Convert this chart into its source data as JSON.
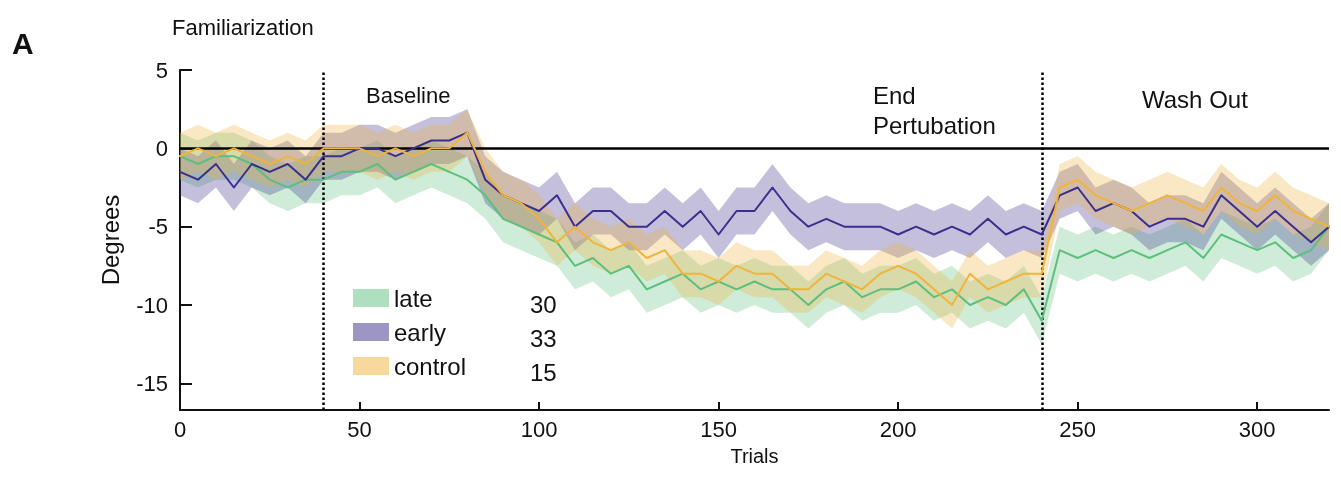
{
  "chart_data": {
    "type": "line",
    "xlabel": "Trials",
    "ylabel": "Degrees",
    "annotations": [
      "A",
      "Familiarization",
      "Baseline",
      "End Pertubation",
      "Wash Out",
      "30",
      "33",
      "15"
    ],
    "x": [
      0,
      5,
      10,
      15,
      20,
      25,
      30,
      35,
      40,
      45,
      50,
      55,
      60,
      65,
      70,
      75,
      80,
      85,
      90,
      95,
      100,
      105,
      110,
      115,
      120,
      125,
      130,
      135,
      140,
      145,
      150,
      155,
      160,
      165,
      170,
      175,
      180,
      185,
      190,
      195,
      200,
      205,
      210,
      215,
      220,
      225,
      230,
      235,
      240,
      245,
      250,
      255,
      260,
      265,
      270,
      275,
      280,
      285,
      290,
      295,
      300,
      305,
      310,
      315,
      320
    ],
    "series": [
      {
        "name": "late",
        "color": "#5dbf7e",
        "values": [
          -0.5,
          -1,
          -0.5,
          -0.5,
          -1,
          -2,
          -2.5,
          -2,
          -2,
          -1.5,
          -1.5,
          -1,
          -2,
          -1.5,
          -1,
          -1.5,
          -2,
          -3,
          -4.5,
          -5,
          -5.5,
          -6,
          -7.5,
          -7,
          -8,
          -7.5,
          -9,
          -8.5,
          -8,
          -9,
          -8.5,
          -9,
          -8.5,
          -9,
          -9,
          -10,
          -9,
          -8.5,
          -9.5,
          -9,
          -9,
          -8.5,
          -9.5,
          -9,
          -10,
          -9.5,
          -10,
          -9,
          -11,
          -6.5,
          -7,
          -6.5,
          -7,
          -6.5,
          -7,
          -6.5,
          -6,
          -7,
          -5.5,
          -6,
          -6.5,
          -6,
          -7,
          -6.5,
          -5
        ],
        "lower": [
          -2,
          -2.5,
          -2,
          -2,
          -2.5,
          -3.5,
          -4,
          -3.5,
          -3.5,
          -3,
          -3,
          -2.5,
          -3.5,
          -3,
          -2.5,
          -3,
          -3.5,
          -4.5,
          -6,
          -6.5,
          -7,
          -7.5,
          -9,
          -8.5,
          -9.5,
          -9,
          -10.5,
          -10,
          -9.5,
          -10.5,
          -10,
          -10.5,
          -10,
          -10.5,
          -10.5,
          -11.5,
          -10.5,
          -10,
          -11,
          -10.5,
          -10.5,
          -10,
          -11,
          -10.5,
          -11.5,
          -11,
          -11.5,
          -10.5,
          -12.5,
          -8,
          -8.5,
          -8,
          -8.5,
          -8,
          -8.5,
          -8,
          -7.5,
          -8.5,
          -7,
          -7.5,
          -8,
          -7.5,
          -8.5,
          -8,
          -6.5
        ],
        "upper": [
          1,
          0.5,
          1,
          1,
          0.5,
          -0.5,
          -1,
          -0.5,
          -0.5,
          0,
          0,
          0.5,
          -0.5,
          0,
          0.5,
          0,
          -0.5,
          -1.5,
          -3,
          -3.5,
          -4,
          -4.5,
          -6,
          -5.5,
          -6.5,
          -6,
          -7.5,
          -7,
          -6.5,
          -7.5,
          -7,
          -7.5,
          -7,
          -7.5,
          -7.5,
          -8.5,
          -7.5,
          -7,
          -8,
          -7.5,
          -7.5,
          -7,
          -8,
          -7.5,
          -8.5,
          -8,
          -8.5,
          -7.5,
          -9.5,
          -5,
          -5.5,
          -5,
          -5.5,
          -5,
          -5.5,
          -5,
          -4.5,
          -5.5,
          -4,
          -4.5,
          -5,
          -4.5,
          -5.5,
          -5,
          -3.5
        ]
      },
      {
        "name": "early",
        "color": "#3b2e8c",
        "values": [
          -1.5,
          -2,
          -1,
          -2.5,
          -1,
          -1.5,
          -1,
          -2,
          -0.5,
          -0.5,
          0,
          0,
          -0.5,
          0,
          0.5,
          0.5,
          1,
          -2,
          -3,
          -3.5,
          -4,
          -3,
          -5,
          -4,
          -4,
          -5,
          -5,
          -4,
          -5,
          -4,
          -5.5,
          -4,
          -4,
          -2.5,
          -4,
          -5,
          -4.5,
          -5,
          -5,
          -5,
          -5.5,
          -5,
          -5.5,
          -5,
          -5.5,
          -4.5,
          -5.5,
          -5,
          -5.5,
          -3,
          -2.5,
          -4,
          -3.5,
          -4,
          -5,
          -4.5,
          -4.5,
          -5,
          -3,
          -4,
          -5,
          -4,
          -5,
          -6,
          -5
        ],
        "lower": [
          -3,
          -3.5,
          -2.5,
          -4,
          -2.5,
          -3,
          -2.5,
          -3.5,
          -2,
          -2,
          -1.5,
          -1.5,
          -2,
          -1.5,
          -1,
          -1,
          -0.5,
          -3.5,
          -4.5,
          -5,
          -5.5,
          -4.5,
          -6.5,
          -5.5,
          -5.5,
          -6.5,
          -6.5,
          -5.5,
          -6.5,
          -5.5,
          -7,
          -5.5,
          -5.5,
          -4,
          -5.5,
          -6.5,
          -6,
          -6.5,
          -6.5,
          -6.5,
          -7,
          -6.5,
          -7,
          -6.5,
          -7,
          -6,
          -7,
          -6.5,
          -7,
          -4.5,
          -4,
          -5.5,
          -5,
          -5.5,
          -6.5,
          -6,
          -6,
          -6.5,
          -4.5,
          -5.5,
          -6.5,
          -5.5,
          -6.5,
          -7.5,
          -6.5
        ],
        "upper": [
          0,
          -0.5,
          0.5,
          -1,
          0.5,
          0,
          0.5,
          -0.5,
          1,
          1,
          1.5,
          1.5,
          1,
          1.5,
          2,
          2,
          2.5,
          -0.5,
          -1.5,
          -2,
          -2.5,
          -1.5,
          -3.5,
          -2.5,
          -2.5,
          -3.5,
          -3.5,
          -2.5,
          -3.5,
          -2.5,
          -4,
          -2.5,
          -2.5,
          -1,
          -2.5,
          -3.5,
          -3,
          -3.5,
          -3.5,
          -3.5,
          -4,
          -3.5,
          -4,
          -3.5,
          -4,
          -3,
          -4,
          -3.5,
          -4,
          -1.5,
          -1,
          -2.5,
          -2,
          -2.5,
          -3.5,
          -3,
          -3,
          -3.5,
          -1.5,
          -2.5,
          -3.5,
          -2.5,
          -3.5,
          -4.5,
          -3.5
        ]
      },
      {
        "name": "control",
        "color": "#f0b43c",
        "values": [
          -0.5,
          0,
          -0.5,
          0,
          -0.5,
          -1,
          -0.5,
          -1,
          0,
          0,
          0,
          -0.5,
          0,
          -0.5,
          0,
          0,
          1,
          -1.5,
          -3,
          -3.5,
          -4.5,
          -6,
          -5,
          -6,
          -6.5,
          -6,
          -7,
          -6.5,
          -8,
          -8,
          -8.5,
          -7.5,
          -8,
          -8,
          -9,
          -9,
          -8,
          -8.5,
          -9,
          -8,
          -7.5,
          -8,
          -9,
          -10,
          -8,
          -9,
          -8.5,
          -8,
          -8,
          -2.5,
          -2,
          -3,
          -3.5,
          -4,
          -3.5,
          -3,
          -3.5,
          -4,
          -2.5,
          -3.5,
          -4,
          -3,
          -4,
          -4.5,
          -5
        ],
        "lower": [
          -2,
          -1.5,
          -2,
          -1.5,
          -2,
          -2.5,
          -2,
          -2.5,
          -1.5,
          -1.5,
          -1.5,
          -2,
          -1.5,
          -2,
          -1.5,
          -1.5,
          -0.5,
          -3,
          -4.5,
          -5,
          -6,
          -7.5,
          -6.5,
          -7.5,
          -8,
          -7.5,
          -8.5,
          -8,
          -9.5,
          -9.5,
          -10,
          -9,
          -9.5,
          -9.5,
          -10.5,
          -10.5,
          -9.5,
          -10,
          -10.5,
          -9.5,
          -9,
          -9.5,
          -10.5,
          -11.5,
          -9.5,
          -10.5,
          -10,
          -9.5,
          -9.5,
          -4,
          -3.5,
          -4.5,
          -5,
          -5.5,
          -5,
          -4.5,
          -5,
          -5.5,
          -4,
          -5,
          -5.5,
          -4.5,
          -5.5,
          -6,
          -6.5
        ],
        "upper": [
          1,
          1.5,
          1,
          1.5,
          1,
          0.5,
          1,
          0.5,
          1.5,
          1.5,
          1.5,
          1,
          1.5,
          1,
          1.5,
          1.5,
          2.5,
          0,
          -1.5,
          -2,
          -3,
          -4.5,
          -3.5,
          -4.5,
          -5,
          -4.5,
          -5.5,
          -5,
          -6.5,
          -6.5,
          -7,
          -6,
          -6.5,
          -6.5,
          -7.5,
          -7.5,
          -6.5,
          -7,
          -7.5,
          -6.5,
          -6,
          -6.5,
          -7.5,
          -8.5,
          -6.5,
          -7.5,
          -7,
          -6.5,
          -6.5,
          -1,
          -0.5,
          -1.5,
          -2,
          -2.5,
          -2,
          -1.5,
          -2,
          -2.5,
          -1,
          -2,
          -2.5,
          -1.5,
          -2.5,
          -3,
          -3.5
        ]
      }
    ],
    "xlim": [
      0,
      320
    ],
    "xticks": [
      0,
      50,
      100,
      150,
      200,
      250,
      300
    ],
    "ylim": [
      -16.7,
      5
    ],
    "yticks": [
      -15,
      -10,
      -5,
      0,
      5
    ],
    "ref_lines": [
      {
        "axis": "x",
        "value": 40,
        "color": "#000000",
        "line_style": "dotted"
      },
      {
        "axis": "x",
        "value": 240,
        "color": "#000000",
        "line_style": "dotted"
      },
      {
        "axis": "y",
        "value": 0,
        "color": "#000000",
        "line_style": "solid"
      }
    ],
    "grid": false,
    "legend": "bottom left",
    "marker": "none",
    "line_style": "solid"
  }
}
